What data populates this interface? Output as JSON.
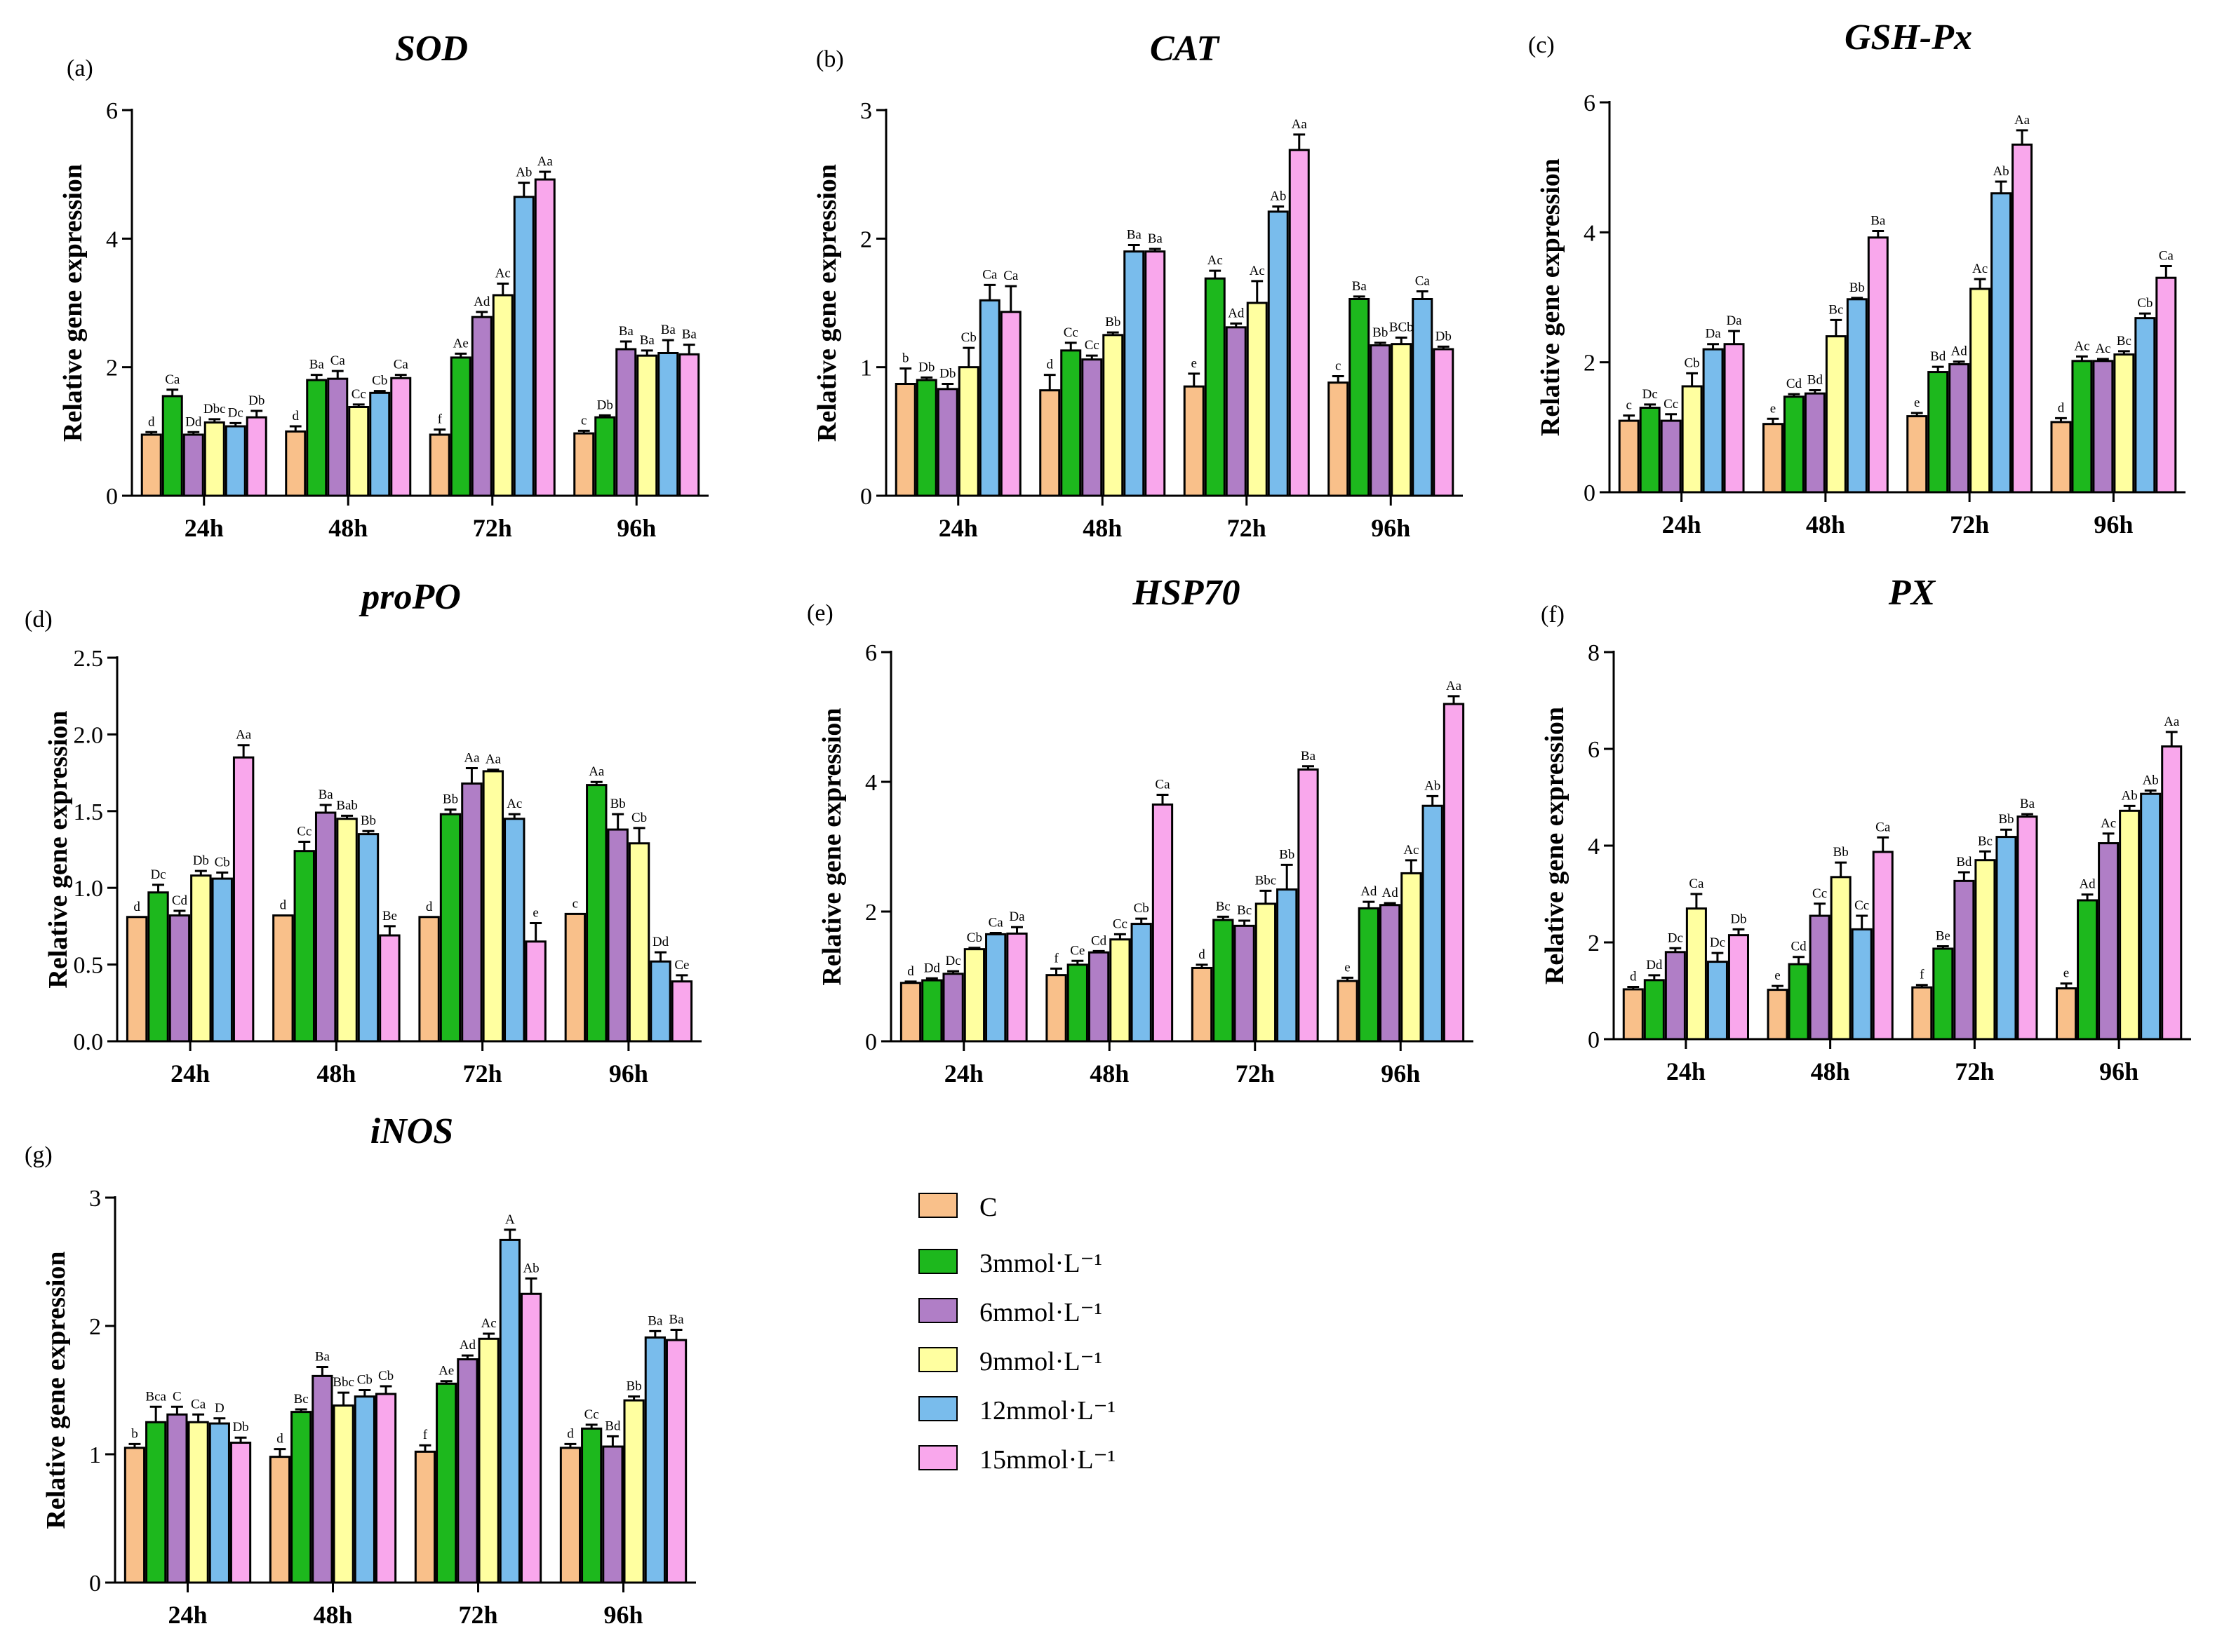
{
  "legend": {
    "items": [
      {
        "label": "C",
        "color": "#F9C08A"
      },
      {
        "label": "3mmol·L⁻¹",
        "color": "#1DB81D"
      },
      {
        "label": "6mmol·L⁻¹",
        "color": "#B07EC6"
      },
      {
        "label": "9mmol·L⁻¹",
        "color": "#FFFFA0"
      },
      {
        "label": "12mmol·L⁻¹",
        "color": "#79BCEC"
      },
      {
        "label": "15mmol·L⁻¹",
        "color": "#F9A7EC"
      }
    ]
  },
  "chart_data": [
    {
      "type": "bar",
      "letter": "(a)",
      "title": "SOD",
      "ylabel": "Relative gene expression",
      "ylim": [
        0,
        6
      ],
      "yticks": [
        "0",
        "2",
        "4",
        "6"
      ],
      "categories": [
        "24h",
        "48h",
        "72h",
        "96h"
      ],
      "series": [
        {
          "name": "C",
          "values": [
            0.95,
            1.0,
            0.95,
            0.97
          ],
          "errors": [
            0.04,
            0.08,
            0.08,
            0.04
          ],
          "labels": [
            "d",
            "d",
            "f",
            "c"
          ]
        },
        {
          "name": "3mmol·L⁻¹",
          "values": [
            1.55,
            1.8,
            2.15,
            1.22
          ],
          "errors": [
            0.1,
            0.08,
            0.06,
            0.03
          ],
          "labels": [
            "Ca",
            "Ba",
            "Ae",
            "Db"
          ]
        },
        {
          "name": "6mmol·L⁻¹",
          "values": [
            0.95,
            1.82,
            2.78,
            2.28
          ],
          "errors": [
            0.04,
            0.12,
            0.08,
            0.12
          ],
          "labels": [
            "Dd",
            "Ca",
            "Ad",
            "Ba"
          ]
        },
        {
          "name": "9mmol·L⁻¹",
          "values": [
            1.14,
            1.38,
            3.12,
            2.18
          ],
          "errors": [
            0.05,
            0.04,
            0.18,
            0.08
          ],
          "labels": [
            "Dbc",
            "Cc",
            "Ac",
            "Ba"
          ]
        },
        {
          "name": "12mmol·L⁻¹",
          "values": [
            1.08,
            1.6,
            4.65,
            2.22
          ],
          "errors": [
            0.05,
            0.03,
            0.22,
            0.2
          ],
          "labels": [
            "Dc",
            "Cb",
            "Ab",
            "Ba"
          ]
        },
        {
          "name": "15mmol·L⁻¹",
          "values": [
            1.22,
            1.83,
            4.92,
            2.2
          ],
          "errors": [
            0.1,
            0.05,
            0.12,
            0.15
          ],
          "labels": [
            "Db",
            "Ca",
            "Aa",
            "Ba"
          ]
        }
      ]
    },
    {
      "type": "bar",
      "letter": "(b)",
      "title": "CAT",
      "ylabel": "Relative gene expression",
      "ylim": [
        0,
        3
      ],
      "yticks": [
        "0",
        "1",
        "2",
        "3"
      ],
      "categories": [
        "24h",
        "48h",
        "72h",
        "96h"
      ],
      "series": [
        {
          "name": "C",
          "values": [
            0.87,
            0.82,
            0.85,
            0.88
          ],
          "errors": [
            0.12,
            0.12,
            0.1,
            0.05
          ],
          "labels": [
            "b",
            "d",
            "e",
            "c"
          ]
        },
        {
          "name": "3mmol·L⁻¹",
          "values": [
            0.9,
            1.13,
            1.69,
            1.53
          ],
          "errors": [
            0.02,
            0.06,
            0.06,
            0.02
          ],
          "labels": [
            "Db",
            "Cc",
            "Ac",
            "Ba"
          ]
        },
        {
          "name": "6mmol·L⁻¹",
          "values": [
            0.83,
            1.06,
            1.31,
            1.17
          ],
          "errors": [
            0.04,
            0.03,
            0.03,
            0.02
          ],
          "labels": [
            "Db",
            "Cc",
            "Ad",
            "Bb"
          ]
        },
        {
          "name": "9mmol·L⁻¹",
          "values": [
            1.0,
            1.25,
            1.5,
            1.18
          ],
          "errors": [
            0.15,
            0.02,
            0.17,
            0.05
          ],
          "labels": [
            "Cb",
            "Bb",
            "Ac",
            "BCb"
          ]
        },
        {
          "name": "12mmol·L⁻¹",
          "values": [
            1.52,
            1.9,
            2.21,
            1.53
          ],
          "errors": [
            0.12,
            0.05,
            0.04,
            0.06
          ],
          "labels": [
            "Ca",
            "Ba",
            "Ab",
            "Ca"
          ]
        },
        {
          "name": "15mmol·L⁻¹",
          "values": [
            1.43,
            1.9,
            2.69,
            1.14
          ],
          "errors": [
            0.2,
            0.02,
            0.12,
            0.02
          ],
          "labels": [
            "Ca",
            "Ba",
            "Aa",
            "Db"
          ]
        }
      ]
    },
    {
      "type": "bar",
      "letter": "(c)",
      "title": "GSH-Px",
      "ylabel": "Relative gene expression",
      "ylim": [
        0,
        6
      ],
      "yticks": [
        "0",
        "2",
        "4",
        "6"
      ],
      "categories": [
        "24h",
        "48h",
        "72h",
        "96h"
      ],
      "series": [
        {
          "name": "C",
          "values": [
            1.1,
            1.05,
            1.17,
            1.08
          ],
          "errors": [
            0.08,
            0.08,
            0.05,
            0.06
          ],
          "labels": [
            "c",
            "e",
            "e",
            "d"
          ]
        },
        {
          "name": "3mmol·L⁻¹",
          "values": [
            1.3,
            1.47,
            1.85,
            2.02
          ],
          "errors": [
            0.05,
            0.04,
            0.08,
            0.07
          ],
          "labels": [
            "Dc",
            "Cd",
            "Bd",
            "Ac"
          ]
        },
        {
          "name": "6mmol·L⁻¹",
          "values": [
            1.1,
            1.52,
            1.97,
            2.02
          ],
          "errors": [
            0.1,
            0.05,
            0.04,
            0.03
          ],
          "labels": [
            "Cc",
            "Bd",
            "Ad",
            "Ac"
          ]
        },
        {
          "name": "9mmol·L⁻¹",
          "values": [
            1.63,
            2.4,
            3.13,
            2.12
          ],
          "errors": [
            0.2,
            0.25,
            0.15,
            0.05
          ],
          "labels": [
            "Cb",
            "Bc",
            "Ac",
            "Bc"
          ]
        },
        {
          "name": "12mmol·L⁻¹",
          "values": [
            2.2,
            2.97,
            4.6,
            2.68
          ],
          "errors": [
            0.08,
            0.02,
            0.18,
            0.07
          ],
          "labels": [
            "Da",
            "Bb",
            "Ab",
            "Cb"
          ]
        },
        {
          "name": "15mmol·L⁻¹",
          "values": [
            2.28,
            3.92,
            5.35,
            3.3
          ],
          "errors": [
            0.2,
            0.1,
            0.22,
            0.18
          ],
          "labels": [
            "Da",
            "Ba",
            "Aa",
            "Ca"
          ]
        }
      ]
    },
    {
      "type": "bar",
      "letter": "(d)",
      "title": "proPO",
      "ylabel": "Relative gene expression",
      "ylim": [
        0,
        2.5
      ],
      "yticks": [
        "0.0",
        "0.5",
        "1.0",
        "1.5",
        "2.0",
        "2.5"
      ],
      "categories": [
        "24h",
        "48h",
        "72h",
        "96h"
      ],
      "series": [
        {
          "name": "C",
          "values": [
            0.81,
            0.82,
            0.81,
            0.83
          ],
          "errors": [
            0,
            0,
            0,
            0
          ],
          "labels": [
            "d",
            "d",
            "d",
            "c"
          ]
        },
        {
          "name": "3mmol·L⁻¹",
          "values": [
            0.97,
            1.24,
            1.48,
            1.67
          ],
          "errors": [
            0.05,
            0.06,
            0.03,
            0.02
          ],
          "labels": [
            "Dc",
            "Cc",
            "Bb",
            "Aa"
          ]
        },
        {
          "name": "6mmol·L⁻¹",
          "values": [
            0.82,
            1.49,
            1.68,
            1.38
          ],
          "errors": [
            0.03,
            0.05,
            0.1,
            0.1
          ],
          "labels": [
            "Cd",
            "Ba",
            "Aa",
            "Bb"
          ]
        },
        {
          "name": "9mmol·L⁻¹",
          "values": [
            1.08,
            1.45,
            1.76,
            1.29
          ],
          "errors": [
            0.03,
            0.02,
            0.01,
            0.1
          ],
          "labels": [
            "Db",
            "Bab",
            "Aa",
            "Cb"
          ]
        },
        {
          "name": "12mmol·L⁻¹",
          "values": [
            1.06,
            1.35,
            1.45,
            0.52
          ],
          "errors": [
            0.04,
            0.02,
            0.03,
            0.06
          ],
          "labels": [
            "Cb",
            "Bb",
            "Ac",
            "Dd"
          ]
        },
        {
          "name": "15mmol·L⁻¹",
          "values": [
            1.85,
            0.69,
            0.65,
            0.39
          ],
          "errors": [
            0.08,
            0.06,
            0.12,
            0.04
          ],
          "labels": [
            "Aa",
            "Be",
            "e",
            "Ce"
          ]
        }
      ]
    },
    {
      "type": "bar",
      "letter": "(e)",
      "title": "HSP70",
      "ylabel": "Relative gene expression",
      "ylim": [
        0,
        6
      ],
      "yticks": [
        "0",
        "2",
        "4",
        "6"
      ],
      "categories": [
        "24h",
        "48h",
        "72h",
        "96h"
      ],
      "series": [
        {
          "name": "C",
          "values": [
            0.9,
            1.02,
            1.13,
            0.93
          ],
          "errors": [
            0.02,
            0.1,
            0.05,
            0.05
          ],
          "labels": [
            "d",
            "f",
            "d",
            "e"
          ]
        },
        {
          "name": "3mmol·L⁻¹",
          "values": [
            0.94,
            1.18,
            1.87,
            2.05
          ],
          "errors": [
            0.03,
            0.06,
            0.05,
            0.1
          ],
          "labels": [
            "Dd",
            "Ce",
            "Bc",
            "Ad"
          ]
        },
        {
          "name": "6mmol·L⁻¹",
          "values": [
            1.04,
            1.37,
            1.78,
            2.1
          ],
          "errors": [
            0.04,
            0.02,
            0.08,
            0.03
          ],
          "labels": [
            "Dc",
            "Cd",
            "Bc",
            "Ad"
          ]
        },
        {
          "name": "9mmol·L⁻¹",
          "values": [
            1.42,
            1.57,
            2.12,
            2.59
          ],
          "errors": [
            0.02,
            0.08,
            0.2,
            0.2
          ],
          "labels": [
            "Cb",
            "Cc",
            "Bbc",
            "Ac"
          ]
        },
        {
          "name": "12mmol·L⁻¹",
          "values": [
            1.65,
            1.81,
            2.34,
            3.63
          ],
          "errors": [
            0.02,
            0.08,
            0.38,
            0.15
          ],
          "labels": [
            "Ca",
            "Cb",
            "Bb",
            "Ab"
          ]
        },
        {
          "name": "15mmol·L⁻¹",
          "values": [
            1.66,
            3.65,
            4.19,
            5.2
          ],
          "errors": [
            0.1,
            0.15,
            0.05,
            0.12
          ],
          "labels": [
            "Da",
            "Ca",
            "Ba",
            "Aa"
          ]
        }
      ]
    },
    {
      "type": "bar",
      "letter": "(f)",
      "title": "PX",
      "ylabel": "Relative gene expression",
      "ylim": [
        0,
        8
      ],
      "yticks": [
        "0",
        "2",
        "4",
        "6",
        "8"
      ],
      "categories": [
        "24h",
        "48h",
        "72h",
        "96h"
      ],
      "series": [
        {
          "name": "C",
          "values": [
            1.03,
            1.02,
            1.07,
            1.05
          ],
          "errors": [
            0.05,
            0.08,
            0.05,
            0.1
          ],
          "labels": [
            "d",
            "e",
            "f",
            "e"
          ]
        },
        {
          "name": "3mmol·L⁻¹",
          "values": [
            1.22,
            1.55,
            1.87,
            2.87
          ],
          "errors": [
            0.1,
            0.15,
            0.05,
            0.12
          ],
          "labels": [
            "Dd",
            "Cd",
            "Be",
            "Ad"
          ]
        },
        {
          "name": "6mmol·L⁻¹",
          "values": [
            1.8,
            2.55,
            3.27,
            4.05
          ],
          "errors": [
            0.08,
            0.25,
            0.18,
            0.2
          ],
          "labels": [
            "Dc",
            "Cc",
            "Bd",
            "Ac"
          ]
        },
        {
          "name": "9mmol·L⁻¹",
          "values": [
            2.7,
            3.35,
            3.7,
            4.72
          ],
          "errors": [
            0.3,
            0.3,
            0.18,
            0.1
          ],
          "labels": [
            "Ca",
            "Bb",
            "Bc",
            "Ab"
          ]
        },
        {
          "name": "12mmol·L⁻¹",
          "values": [
            1.6,
            2.27,
            4.18,
            5.07
          ],
          "errors": [
            0.18,
            0.28,
            0.15,
            0.07
          ],
          "labels": [
            "Dc",
            "Cc",
            "Bb",
            "Ab"
          ]
        },
        {
          "name": "15mmol·L⁻¹",
          "values": [
            2.15,
            3.87,
            4.6,
            6.05
          ],
          "errors": [
            0.12,
            0.3,
            0.05,
            0.3
          ],
          "labels": [
            "Db",
            "Ca",
            "Ba",
            "Aa"
          ]
        }
      ]
    },
    {
      "type": "bar",
      "letter": "(g)",
      "title": "iNOS",
      "ylabel": "Relative gene expression",
      "ylim": [
        0,
        3
      ],
      "yticks": [
        "0",
        "1",
        "2",
        "3"
      ],
      "categories": [
        "24h",
        "48h",
        "72h",
        "96h"
      ],
      "series": [
        {
          "name": "C",
          "values": [
            1.05,
            0.98,
            1.02,
            1.05
          ],
          "errors": [
            0.03,
            0.06,
            0.05,
            0.03
          ],
          "labels": [
            "b",
            "d",
            "f",
            "d"
          ]
        },
        {
          "name": "3mmol·L⁻¹",
          "values": [
            1.25,
            1.33,
            1.55,
            1.2
          ],
          "errors": [
            0.12,
            0.02,
            0.02,
            0.03
          ],
          "labels": [
            "Bca",
            "Bc",
            "Ae",
            "Cc"
          ]
        },
        {
          "name": "6mmol·L⁻¹",
          "values": [
            1.31,
            1.61,
            1.74,
            1.06
          ],
          "errors": [
            0.06,
            0.07,
            0.03,
            0.08
          ],
          "labels": [
            "C",
            "Ba",
            "Ad",
            "Bd"
          ]
        },
        {
          "name": "9mmol·L⁻¹",
          "values": [
            1.25,
            1.38,
            1.9,
            1.42
          ],
          "errors": [
            0.06,
            0.1,
            0.04,
            0.03
          ],
          "labels": [
            "Ca",
            "Bbc",
            "Ac",
            "Bb"
          ]
        },
        {
          "name": "12mmol·L⁻¹",
          "values": [
            1.24,
            1.45,
            2.67,
            1.91
          ],
          "errors": [
            0.04,
            0.05,
            0.08,
            0.05
          ],
          "labels": [
            "D",
            "Cb",
            "A",
            "Ba"
          ]
        },
        {
          "name": "15mmol·L⁻¹",
          "values": [
            1.09,
            1.47,
            2.25,
            1.89
          ],
          "errors": [
            0.04,
            0.06,
            0.12,
            0.08
          ],
          "labels": [
            "Db",
            "Cb",
            "Ab",
            "Ba"
          ]
        }
      ]
    }
  ]
}
